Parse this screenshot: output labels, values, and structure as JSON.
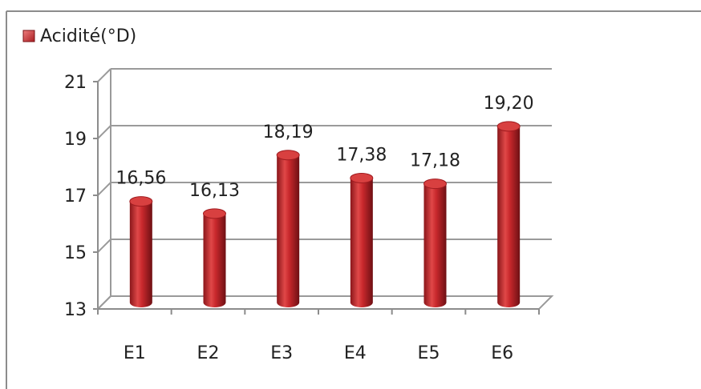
{
  "chart_data": {
    "type": "bar",
    "categories": [
      "E1",
      "E2",
      "E3",
      "E4",
      "E5",
      "E6"
    ],
    "series": [
      {
        "name": "Acidité(°D)",
        "values": [
          16.56,
          16.13,
          18.19,
          17.38,
          17.18,
          19.2
        ],
        "labels": [
          "16,56",
          "16,13",
          "18,19",
          "17,38",
          "17,18",
          "19,20"
        ]
      }
    ],
    "y_ticks": [
      "13",
      "15",
      "17",
      "19",
      "21"
    ],
    "ylim": [
      13,
      21
    ],
    "grid": true,
    "legend_position": "top-left",
    "style": "3d-cylinder",
    "colors": {
      "bar": "#c8282c",
      "bar_dark": "#7a1216",
      "bar_light": "#ef6a6a",
      "grid": "#9a9a9a",
      "frame": "#8c8c8c"
    }
  }
}
